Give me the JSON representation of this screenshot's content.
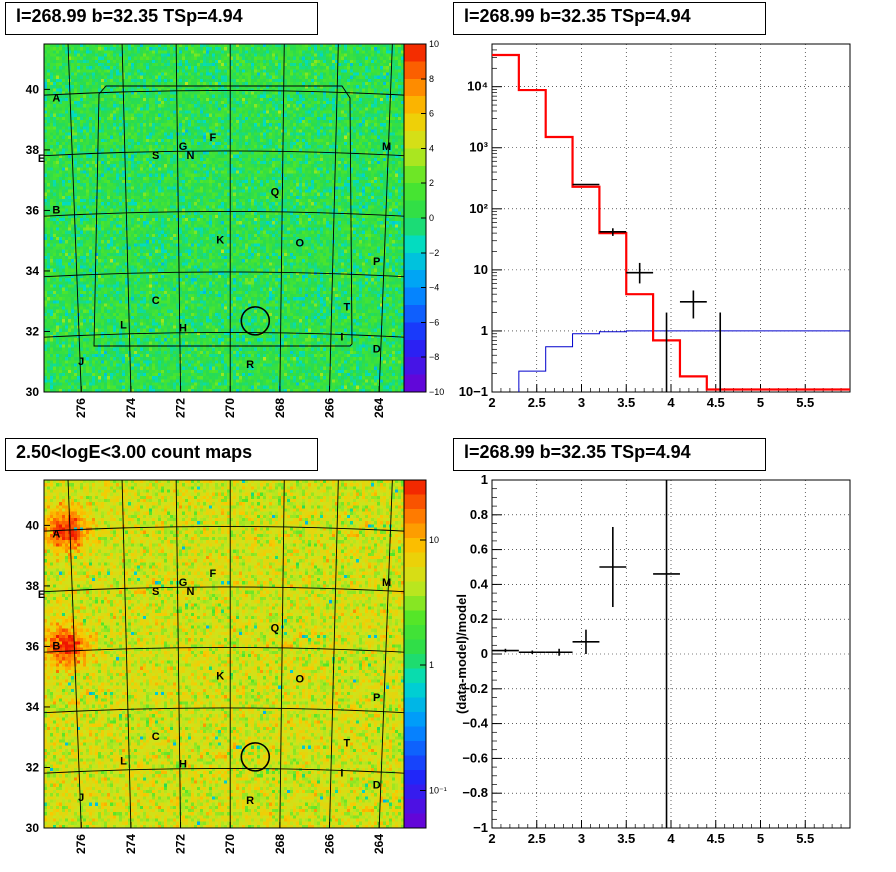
{
  "titles": {
    "top_left": "l=268.99 b=32.35 TSp=4.94",
    "top_right": "l=268.99 b=32.35 TSp=4.94",
    "bottom_left": "2.50<logE<3.00 count maps",
    "bottom_right": "l=268.99 b=32.35 TSp=4.94"
  },
  "colors": {
    "residual_map_bg": "#33dd55",
    "count_map_bg": "#e0dc2a",
    "model_line": "#ff0000",
    "background_line": "#0000cc",
    "data_points": "#000000"
  },
  "chart_data": [
    {
      "id": "residual_map",
      "type": "heatmap",
      "x_ticks": [
        "276",
        "274",
        "272",
        "270",
        "268",
        "266",
        "264"
      ],
      "y_ticks": [
        "30",
        "32",
        "34",
        "36",
        "38",
        "40"
      ],
      "xlim": [
        277.5,
        263.0
      ],
      "ylim": [
        30.0,
        41.5
      ],
      "colorbar": {
        "range": [
          -10,
          10
        ],
        "ticks": [
          "10",
          "8",
          "6",
          "4",
          "2",
          "0",
          "−2",
          "−4",
          "−6",
          "−8",
          "−10"
        ]
      },
      "source_labels": [
        {
          "label": "A",
          "l": 277.0,
          "b": 39.6
        },
        {
          "label": "E",
          "l": 277.6,
          "b": 37.6
        },
        {
          "label": "B",
          "l": 277.0,
          "b": 35.9
        },
        {
          "label": "J",
          "l": 276.0,
          "b": 30.9
        },
        {
          "label": "L",
          "l": 274.3,
          "b": 32.1
        },
        {
          "label": "C",
          "l": 273.0,
          "b": 32.9
        },
        {
          "label": "S",
          "l": 273.0,
          "b": 37.7
        },
        {
          "label": "G",
          "l": 271.9,
          "b": 38.0
        },
        {
          "label": "N",
          "l": 271.6,
          "b": 37.7
        },
        {
          "label": "F",
          "l": 270.7,
          "b": 38.3
        },
        {
          "label": "H",
          "l": 271.9,
          "b": 32.0
        },
        {
          "label": "K",
          "l": 270.4,
          "b": 34.9
        },
        {
          "label": "Q",
          "l": 268.2,
          "b": 36.5
        },
        {
          "label": "O",
          "l": 267.2,
          "b": 34.8
        },
        {
          "label": "R",
          "l": 269.2,
          "b": 30.8
        },
        {
          "label": "T",
          "l": 265.3,
          "b": 32.7
        },
        {
          "label": "I",
          "l": 265.5,
          "b": 31.7
        },
        {
          "label": "P",
          "l": 264.1,
          "b": 34.2
        },
        {
          "label": "D",
          "l": 264.1,
          "b": 31.3
        },
        {
          "label": "M",
          "l": 263.7,
          "b": 38.0
        }
      ],
      "target": {
        "l": 268.99,
        "b": 32.35
      }
    },
    {
      "id": "spectrum",
      "type": "line",
      "y_scale": "log",
      "xlim": [
        2.0,
        6.0
      ],
      "ylim": [
        0.1,
        50000
      ],
      "x_ticks": [
        "2",
        "2.5",
        "3",
        "3.5",
        "4",
        "4.5",
        "5",
        "5.5"
      ],
      "y_ticks": [
        "10−1",
        "1",
        "10",
        "10²",
        "10³",
        "10⁴"
      ],
      "y_tick_values": [
        0.1,
        1,
        10,
        100,
        1000,
        10000
      ],
      "series": [
        {
          "role": "model",
          "edges": [
            2.0,
            2.3,
            2.6,
            2.9,
            3.2,
            3.5,
            3.8,
            4.1,
            4.4,
            6.0
          ],
          "values": [
            33000,
            8800,
            1500,
            230,
            40,
            4.0,
            0.7,
            0.18,
            0.11
          ]
        },
        {
          "role": "background",
          "edges": [
            2.3,
            2.6,
            2.9,
            3.2,
            3.5,
            3.8,
            4.1,
            4.4,
            6.0
          ],
          "values": [
            0.22,
            0.55,
            0.9,
            0.97,
            1.0,
            1.0,
            1.0,
            1.0
          ]
        },
        {
          "role": "data",
          "points": [
            {
              "x": 3.05,
              "y": 250,
              "xerr": 0.15,
              "ylo": 250,
              "yhi": 250
            },
            {
              "x": 3.35,
              "y": 42,
              "xerr": 0.15,
              "ylo": 36,
              "yhi": 48
            },
            {
              "x": 3.65,
              "y": 9,
              "xerr": 0.15,
              "ylo": 6,
              "yhi": 13
            },
            {
              "x": 3.95,
              "y": 0.3,
              "xerr": 0.0,
              "ylo": 0.1,
              "yhi": 2.0
            },
            {
              "x": 4.25,
              "y": 3,
              "xerr": 0.15,
              "ylo": 1.6,
              "yhi": 4.6
            },
            {
              "x": 4.55,
              "y": 0.5,
              "xerr": 0.0,
              "ylo": 0.1,
              "yhi": 2.0
            }
          ]
        }
      ]
    },
    {
      "id": "count_map",
      "type": "heatmap",
      "x_ticks": [
        "276",
        "274",
        "272",
        "270",
        "268",
        "266",
        "264"
      ],
      "y_ticks": [
        "30",
        "32",
        "34",
        "36",
        "38",
        "40"
      ],
      "xlim": [
        277.5,
        263.0
      ],
      "ylim": [
        30.0,
        41.5
      ],
      "colorbar": {
        "scale": "log",
        "ticks": [
          "10",
          "1",
          "10⁻¹"
        ],
        "tick_values": [
          10,
          1,
          0.1
        ],
        "range": [
          0.05,
          30
        ]
      },
      "hotspots": [
        {
          "label": "A",
          "l": 276.6,
          "b": 39.8
        },
        {
          "label": "B",
          "l": 276.6,
          "b": 36.0
        }
      ]
    },
    {
      "id": "residuals",
      "type": "scatter",
      "ylabel": "(data-model)/model",
      "xlim": [
        2.0,
        6.0
      ],
      "ylim": [
        -1.0,
        1.0
      ],
      "x_ticks": [
        "2",
        "2.5",
        "3",
        "3.5",
        "4",
        "4.5",
        "5",
        "5.5"
      ],
      "y_ticks": [
        "−1",
        "−0.8",
        "−0.6",
        "−0.4",
        "−0.2",
        "0",
        "0.2",
        "0.4",
        "0.6",
        "0.8",
        "1"
      ],
      "y_tick_values": [
        -1,
        -0.8,
        -0.6,
        -0.4,
        -0.2,
        0,
        0.2,
        0.4,
        0.6,
        0.8,
        1
      ],
      "points": [
        {
          "x": 2.15,
          "y": 0.02,
          "xerr": 0.15,
          "yerr": 0.01
        },
        {
          "x": 2.45,
          "y": 0.01,
          "xerr": 0.15,
          "yerr": 0.01
        },
        {
          "x": 2.75,
          "y": 0.01,
          "xerr": 0.15,
          "yerr": 0.02
        },
        {
          "x": 3.05,
          "y": 0.07,
          "xerr": 0.15,
          "yerr": 0.07
        },
        {
          "x": 3.35,
          "y": 0.5,
          "xerr": 0.15,
          "yerr": 0.23
        },
        {
          "x": 3.95,
          "y": 0.46,
          "xerr": 0.15,
          "yerr": 1.6
        }
      ]
    }
  ]
}
